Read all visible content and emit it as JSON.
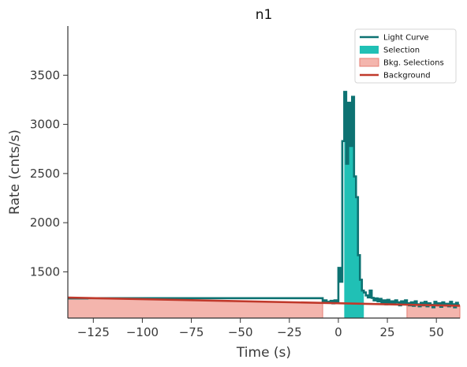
{
  "chart_data": {
    "type": "line",
    "title": "n1",
    "xlabel": "Time (s)",
    "ylabel": "Rate (cnts/s)",
    "xlim": [
      -138,
      62
    ],
    "ylim": [
      1030,
      4000
    ],
    "xticks": [
      -125,
      -100,
      -75,
      -50,
      -25,
      0,
      25,
      50
    ],
    "xtick_labels": [
      "−125",
      "−100",
      "−75",
      "−50",
      "−25",
      "0",
      "25",
      "50"
    ],
    "yticks": [
      1500,
      2000,
      2500,
      3000,
      3500
    ],
    "ytick_labels": [
      "1500",
      "2000",
      "2500",
      "3000",
      "3500"
    ],
    "grid": false,
    "legend_position": "top-right",
    "colors": {
      "light_curve": "#0d7272",
      "selection": "#20c0b5",
      "bkg_selection_fill": "#f4b5ad",
      "bkg_selection_edge": "#e57f75",
      "background": "#c0392b",
      "axis": "#333333"
    },
    "legend": [
      {
        "label": "Light Curve",
        "kind": "line",
        "color": "#0d7272"
      },
      {
        "label": "Selection",
        "kind": "patch",
        "color": "#20c0b5"
      },
      {
        "label": "Bkg. Selections",
        "kind": "patch",
        "color": "#f4b5ad"
      },
      {
        "label": "Background",
        "kind": "line",
        "color": "#c0392b"
      }
    ],
    "series": [
      {
        "name": "Light Curve",
        "step": "post",
        "x": [
          -138,
          -128,
          -8,
          -7,
          -6,
          -5,
          -4,
          -3,
          -2,
          -1,
          0,
          1,
          2,
          3,
          4,
          5,
          6,
          7,
          8,
          9,
          10,
          11,
          12,
          13,
          14,
          15,
          16,
          17,
          18,
          19,
          20,
          21,
          22,
          23,
          24,
          25,
          26,
          27,
          28,
          29,
          30,
          31,
          32,
          33,
          34,
          35,
          36,
          37,
          38,
          39,
          40,
          41,
          42,
          43,
          44,
          45,
          46,
          47,
          48,
          49,
          50,
          51,
          52,
          53,
          54,
          55,
          56,
          57,
          58,
          59,
          60,
          61,
          62
        ],
        "y": [
          1230,
          1232,
          1205,
          1210,
          1185,
          1195,
          1205,
          1180,
          1210,
          1190,
          1540,
          1400,
          2830,
          3330,
          2600,
          3220,
          2780,
          3280,
          2470,
          2260,
          1670,
          1420,
          1310,
          1290,
          1260,
          1240,
          1310,
          1235,
          1210,
          1230,
          1200,
          1225,
          1180,
          1210,
          1170,
          1215,
          1185,
          1200,
          1175,
          1210,
          1190,
          1160,
          1200,
          1170,
          1210,
          1180,
          1160,
          1190,
          1155,
          1200,
          1170,
          1150,
          1185,
          1160,
          1195,
          1150,
          1180,
          1165,
          1140,
          1195,
          1160,
          1180,
          1145,
          1190,
          1160,
          1175,
          1150,
          1195,
          1170,
          1140,
          1185,
          1160,
          1160
        ]
      },
      {
        "name": "Background",
        "x": [
          -138,
          62
        ],
        "y": [
          1238,
          1155
        ]
      }
    ],
    "selection": {
      "x_range": [
        3,
        13
      ]
    },
    "bkg_selections": [
      {
        "x_range": [
          -138,
          -8
        ]
      },
      {
        "x_range": [
          35,
          62
        ]
      }
    ]
  }
}
